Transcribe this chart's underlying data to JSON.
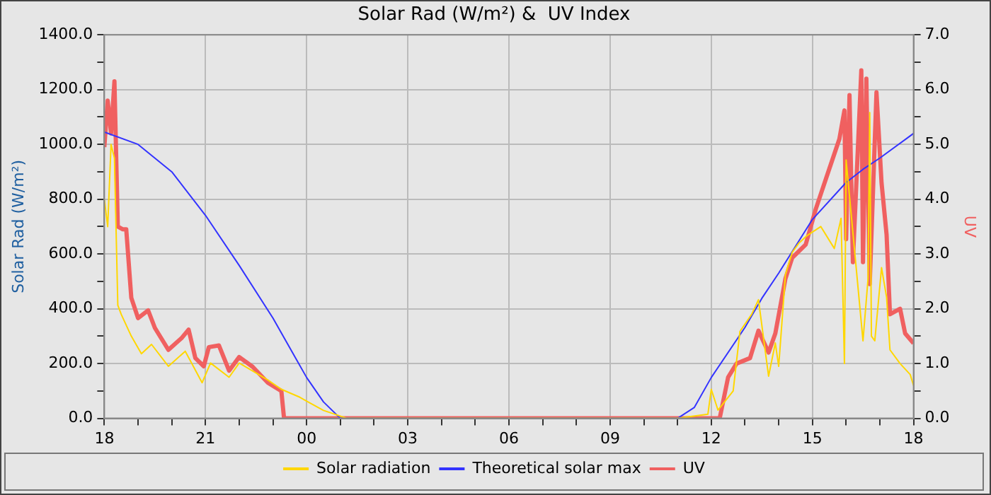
{
  "chart_data": {
    "type": "line",
    "title": "Solar Rad (W/m²) &  UV Index",
    "ylabel": "Solar Rad (W/m²)",
    "y2label": "UV",
    "xlim": [
      18,
      42
    ],
    "xticks": [
      {
        "value": 18,
        "label": "18"
      },
      {
        "value": 19,
        "label": null
      },
      {
        "value": 20,
        "label": null
      },
      {
        "value": 21,
        "label": "21"
      },
      {
        "value": 22,
        "label": null
      },
      {
        "value": 23,
        "label": null
      },
      {
        "value": 24,
        "label": "00"
      },
      {
        "value": 25,
        "label": null
      },
      {
        "value": 26,
        "label": null
      },
      {
        "value": 27,
        "label": "03"
      },
      {
        "value": 28,
        "label": null
      },
      {
        "value": 29,
        "label": null
      },
      {
        "value": 30,
        "label": "06"
      },
      {
        "value": 31,
        "label": null
      },
      {
        "value": 32,
        "label": null
      },
      {
        "value": 33,
        "label": "09"
      },
      {
        "value": 34,
        "label": null
      },
      {
        "value": 35,
        "label": null
      },
      {
        "value": 36,
        "label": "12"
      },
      {
        "value": 37,
        "label": null
      },
      {
        "value": 38,
        "label": null
      },
      {
        "value": 39,
        "label": "15"
      },
      {
        "value": 40,
        "label": null
      },
      {
        "value": 41,
        "label": null
      },
      {
        "value": 42,
        "label": "18"
      }
    ],
    "ylim": [
      0,
      1400
    ],
    "yticks": [
      {
        "value": 0,
        "label": "0.0"
      },
      {
        "value": 100,
        "label": null
      },
      {
        "value": 200,
        "label": "200.0"
      },
      {
        "value": 300,
        "label": null
      },
      {
        "value": 400,
        "label": "400.0"
      },
      {
        "value": 500,
        "label": null
      },
      {
        "value": 600,
        "label": "600.0"
      },
      {
        "value": 700,
        "label": null
      },
      {
        "value": 800,
        "label": "800.0"
      },
      {
        "value": 900,
        "label": null
      },
      {
        "value": 1000,
        "label": "1000.0"
      },
      {
        "value": 1100,
        "label": null
      },
      {
        "value": 1200,
        "label": "1200.0"
      },
      {
        "value": 1300,
        "label": null
      },
      {
        "value": 1400,
        "label": "1400.0"
      }
    ],
    "y2lim": [
      0,
      7
    ],
    "y2ticks": [
      {
        "value": 0,
        "label": "0.0"
      },
      {
        "value": 0.5,
        "label": null
      },
      {
        "value": 1,
        "label": "1.0"
      },
      {
        "value": 1.5,
        "label": null
      },
      {
        "value": 2,
        "label": "2.0"
      },
      {
        "value": 2.5,
        "label": null
      },
      {
        "value": 3,
        "label": "3.0"
      },
      {
        "value": 3.5,
        "label": null
      },
      {
        "value": 4,
        "label": "4.0"
      },
      {
        "value": 4.5,
        "label": null
      },
      {
        "value": 5,
        "label": "5.0"
      },
      {
        "value": 5.5,
        "label": null
      },
      {
        "value": 6,
        "label": "6.0"
      },
      {
        "value": 6.5,
        "label": null
      },
      {
        "value": 7,
        "label": "7.0"
      }
    ],
    "grid": true,
    "legend": "bottom",
    "marker": "none",
    "series": [
      {
        "name": "Solar radiation",
        "color": "#ffd700",
        "x": [
          18,
          18.1,
          18.2,
          18.3,
          18.4,
          18.5,
          18.8,
          19.1,
          19.4,
          19.9,
          20.4,
          20.9,
          21.15,
          21.7,
          22.0,
          22.4,
          22.85,
          23.25,
          23.8,
          24.07,
          24.5,
          25.2,
          35.0,
          35.9,
          36.0,
          36.2,
          36.65,
          36.85,
          37.2,
          37.4,
          37.7,
          37.9,
          38.0,
          38.2,
          38.4,
          38.6,
          38.85,
          39.25,
          39.65,
          39.85,
          39.95,
          40.0,
          40.5,
          40.65,
          40.7,
          40.75,
          40.85,
          41.05,
          41.2,
          41.3,
          41.6,
          41.9,
          42
        ],
        "values": [
          800,
          700,
          1000,
          950,
          413,
          380,
          300,
          236,
          270,
          190,
          245,
          130,
          202,
          150,
          202,
          173,
          140,
          106,
          77,
          58,
          29,
          0,
          0,
          15,
          106,
          30,
          100,
          317,
          380,
          433,
          154,
          275,
          190,
          524,
          606,
          640,
          668,
          700,
          620,
          730,
          200,
          943,
          283,
          510,
          1116,
          300,
          283,
          550,
          442,
          250,
          200,
          160,
          120
        ]
      },
      {
        "name": "Theoretical solar max",
        "color": "#3333ff",
        "x": [
          18,
          19,
          20,
          21,
          22,
          23,
          24,
          24.5,
          25,
          35,
          35.5,
          36,
          37,
          37.5,
          38,
          39,
          40,
          40.5,
          41,
          42
        ],
        "values": [
          1045,
          1000,
          900,
          741,
          558,
          366,
          149,
          60,
          0,
          0,
          40,
          149,
          332,
          438,
          530,
          726,
          861,
          909,
          950,
          1040
        ]
      },
      {
        "name": "UV",
        "color": "#f06060",
        "axis": "y2",
        "x": [
          18,
          18.1,
          18.2,
          18.3,
          18.4,
          18.55,
          18.65,
          18.8,
          19.0,
          19.3,
          19.5,
          19.9,
          20.3,
          20.5,
          20.7,
          20.95,
          21.1,
          21.4,
          21.7,
          22.0,
          22.4,
          22.85,
          23.25,
          23.33,
          36.25,
          36.5,
          36.75,
          37.15,
          37.4,
          37.7,
          37.9,
          38.2,
          38.4,
          38.8,
          39.1,
          39.4,
          39.8,
          39.95,
          40.0,
          40.1,
          40.2,
          40.45,
          40.5,
          40.6,
          40.7,
          40.9,
          41.05,
          41.2,
          41.3,
          41.6,
          41.75,
          42
        ],
        "values": [
          4.95,
          5.8,
          5.2,
          6.15,
          3.5,
          3.45,
          3.45,
          2.2,
          1.83,
          1.97,
          1.65,
          1.25,
          1.47,
          1.62,
          1.1,
          0.95,
          1.3,
          1.33,
          0.87,
          1.12,
          0.94,
          0.65,
          0.5,
          0,
          0,
          0.75,
          1.0,
          1.1,
          1.6,
          1.2,
          1.55,
          2.55,
          2.93,
          3.17,
          3.82,
          4.37,
          5.1,
          5.62,
          3.27,
          5.9,
          2.85,
          6.35,
          2.85,
          6.2,
          2.45,
          5.95,
          4.3,
          3.35,
          1.9,
          2.0,
          1.55,
          1.37
        ]
      }
    ]
  }
}
